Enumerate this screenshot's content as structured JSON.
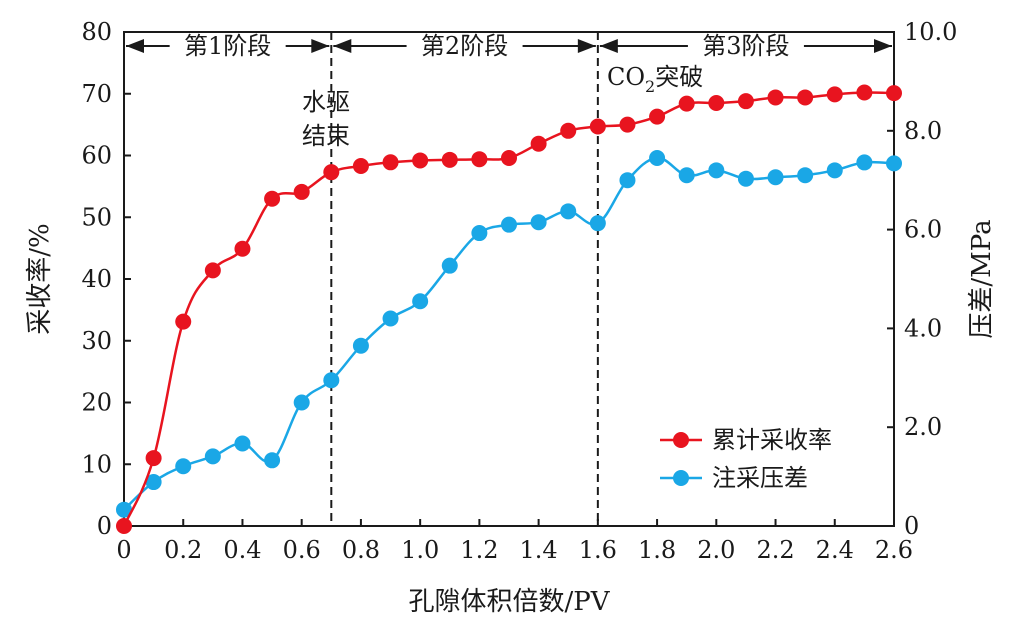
{
  "chart_data": {
    "type": "line",
    "xlabel": "孔隙体积倍数/PV",
    "ylabel_left": "采收率/%",
    "ylabel_right": "压差/MPa",
    "xlim": [
      0,
      2.6
    ],
    "ylim_left": [
      0,
      80
    ],
    "ylim_right": [
      0,
      10
    ],
    "x_ticks": [
      "0",
      "0.2",
      "0.4",
      "0.6",
      "0.8",
      "1.0",
      "1.2",
      "1.4",
      "1.6",
      "1.8",
      "2.0",
      "2.2",
      "2.4",
      "2.6"
    ],
    "y_left_ticks": [
      "0",
      "10",
      "20",
      "30",
      "40",
      "50",
      "60",
      "70",
      "80"
    ],
    "y_right_ticks": [
      "0",
      "2.0",
      "4.0",
      "6.0",
      "8.0",
      "10.0"
    ],
    "legend_position": "bottom-right",
    "grid": false,
    "series": [
      {
        "name": "累计采收率",
        "axis": "left",
        "color": "#e8141f",
        "x": [
          0,
          0.1,
          0.2,
          0.3,
          0.4,
          0.5,
          0.6,
          0.7,
          0.8,
          0.9,
          1.0,
          1.1,
          1.2,
          1.3,
          1.4,
          1.5,
          1.6,
          1.7,
          1.8,
          1.9,
          2.0,
          2.1,
          2.2,
          2.3,
          2.4,
          2.5,
          2.6
        ],
        "values": [
          0,
          11,
          33.1,
          41.4,
          44.9,
          53.0,
          54.1,
          57.3,
          58.3,
          58.9,
          59.2,
          59.3,
          59.4,
          59.6,
          61.9,
          64.0,
          64.7,
          65.0,
          66.3,
          68.4,
          68.5,
          68.8,
          69.4,
          69.4,
          69.9,
          70.2,
          70.1
        ]
      },
      {
        "name": "注采压差",
        "axis": "right",
        "color": "#1aa7e6",
        "x": [
          0,
          0.1,
          0.2,
          0.3,
          0.4,
          0.5,
          0.6,
          0.7,
          0.8,
          0.9,
          1.0,
          1.1,
          1.2,
          1.3,
          1.4,
          1.5,
          1.6,
          1.7,
          1.8,
          1.9,
          2.0,
          2.1,
          2.2,
          2.3,
          2.4,
          2.5,
          2.6
        ],
        "values": [
          0.33,
          0.89,
          1.21,
          1.41,
          1.67,
          1.33,
          2.5,
          2.95,
          3.65,
          4.2,
          4.55,
          5.27,
          5.93,
          6.1,
          6.15,
          6.37,
          6.13,
          7.0,
          7.45,
          7.1,
          7.2,
          7.03,
          7.06,
          7.1,
          7.2,
          7.36,
          7.34
        ]
      }
    ],
    "stage_dividers": [
      0.7,
      1.6
    ],
    "stages": [
      {
        "label": "第1阶段",
        "from": 0,
        "to": 0.7
      },
      {
        "label": "第2阶段",
        "from": 0.7,
        "to": 1.6
      },
      {
        "label": "第3阶段",
        "from": 1.6,
        "to": 2.6
      }
    ],
    "annotations": {
      "water_end_line1": "水驱",
      "water_end_line2": "结束",
      "co2_prefix": "CO",
      "co2_sub": "2",
      "co2_suffix": "突破"
    }
  }
}
